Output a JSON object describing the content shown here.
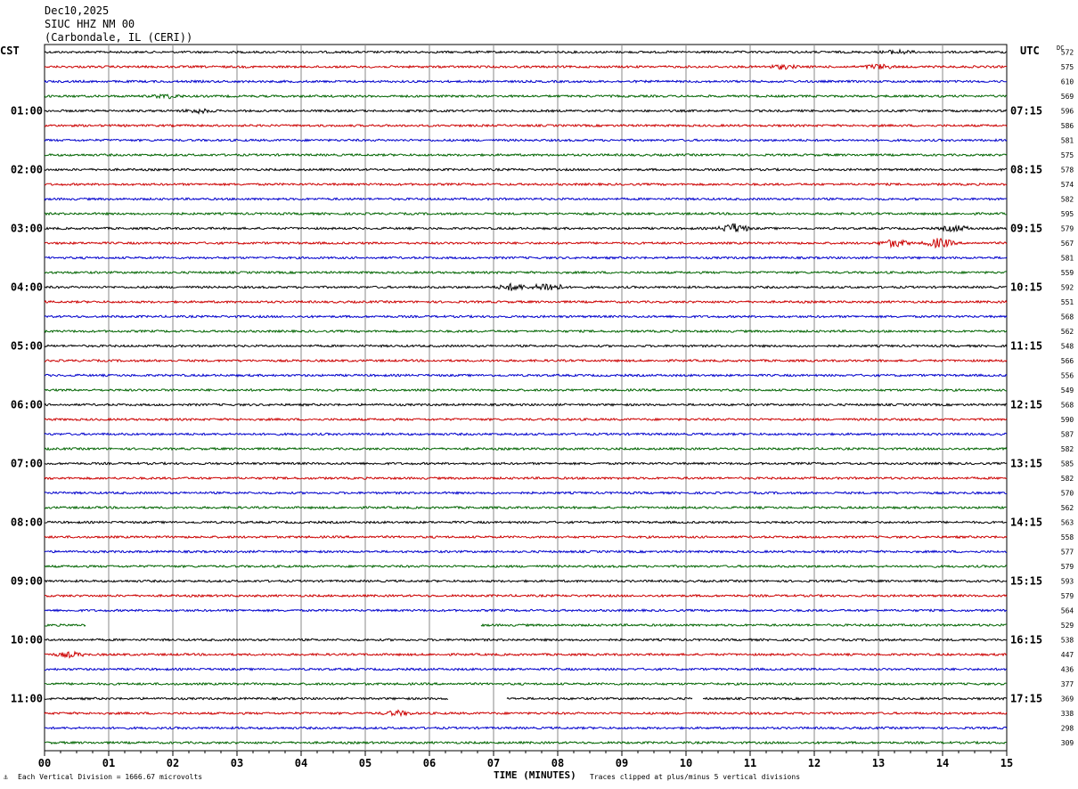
{
  "header": {
    "date": "Dec10,2025",
    "station": "SIUC HHZ NM 00",
    "location": "(Carbondale, IL (CERI))"
  },
  "left_zone": "CST",
  "right_zone": "UTC",
  "dc_label": "DC",
  "footer": {
    "scale": "Each Vertical Division = 1666.67 microvolts",
    "xlabel": "TIME (MINUTES)",
    "clip": "Traces clipped at plus/minus 5 vertical divisions"
  },
  "colors": {
    "black": "#000000",
    "red": "#cc0000",
    "blue": "#0000cc",
    "green": "#006400",
    "grid": "#888888"
  },
  "chart_data": {
    "type": "line",
    "title": "SIUC HHZ NM 00",
    "xlabel": "TIME (MINUTES)",
    "xlim": [
      0,
      15
    ],
    "x_ticks": [
      "00",
      "01",
      "02",
      "03",
      "04",
      "05",
      "06",
      "07",
      "08",
      "09",
      "10",
      "11",
      "12",
      "13",
      "14",
      "15"
    ],
    "left_time_labels": [
      "01:00",
      "02:00",
      "03:00",
      "04:00",
      "05:00",
      "06:00",
      "07:00",
      "08:00",
      "09:00",
      "10:00",
      "11:00"
    ],
    "right_time_labels": [
      "07:15",
      "08:15",
      "09:15",
      "10:15",
      "11:15",
      "12:15",
      "13:15",
      "14:15",
      "15:15",
      "16:15",
      "17:15"
    ],
    "trace_color_cycle": [
      "black",
      "red",
      "blue",
      "green"
    ],
    "dc_offsets": [
      "572",
      "575",
      "610",
      "569",
      "596",
      "586",
      "581",
      "575",
      "578",
      "574",
      "582",
      "595",
      "579",
      "567",
      "581",
      "559",
      "592",
      "551",
      "568",
      "562",
      "548",
      "566",
      "556",
      "549",
      "568",
      "590",
      "587",
      "582",
      "585",
      "582",
      "570",
      "562",
      "563",
      "558",
      "577",
      "579",
      "593",
      "579",
      "564",
      "529",
      "538",
      "447",
      "436",
      "377",
      "369",
      "338",
      "298",
      "309"
    ],
    "events": [
      {
        "trace": 0,
        "minute": 13.3,
        "amp": 2.0
      },
      {
        "trace": 1,
        "minute": 11.5,
        "amp": 2.0
      },
      {
        "trace": 1,
        "minute": 13.0,
        "amp": 2.5
      },
      {
        "trace": 3,
        "minute": 1.9,
        "amp": 2.0
      },
      {
        "trace": 4,
        "minute": 2.4,
        "amp": 2.0
      },
      {
        "trace": 12,
        "minute": 10.75,
        "amp": 5.0
      },
      {
        "trace": 12,
        "minute": 14.2,
        "amp": 3.0
      },
      {
        "trace": 13,
        "minute": 13.25,
        "amp": 4.0
      },
      {
        "trace": 13,
        "minute": 13.95,
        "amp": 5.0
      },
      {
        "trace": 16,
        "minute": 7.3,
        "amp": 3.5
      },
      {
        "trace": 16,
        "minute": 7.85,
        "amp": 5.0
      },
      {
        "trace": 41,
        "minute": 0.4,
        "amp": 2.5
      },
      {
        "trace": 45,
        "minute": 5.5,
        "amp": 2.5
      }
    ],
    "gaps": [
      {
        "trace": 39,
        "from": 0.65,
        "to": 6.8
      },
      {
        "trace": 44,
        "from": 6.3,
        "to": 7.2
      },
      {
        "trace": 44,
        "from": 10.1,
        "to": 10.25
      }
    ]
  }
}
